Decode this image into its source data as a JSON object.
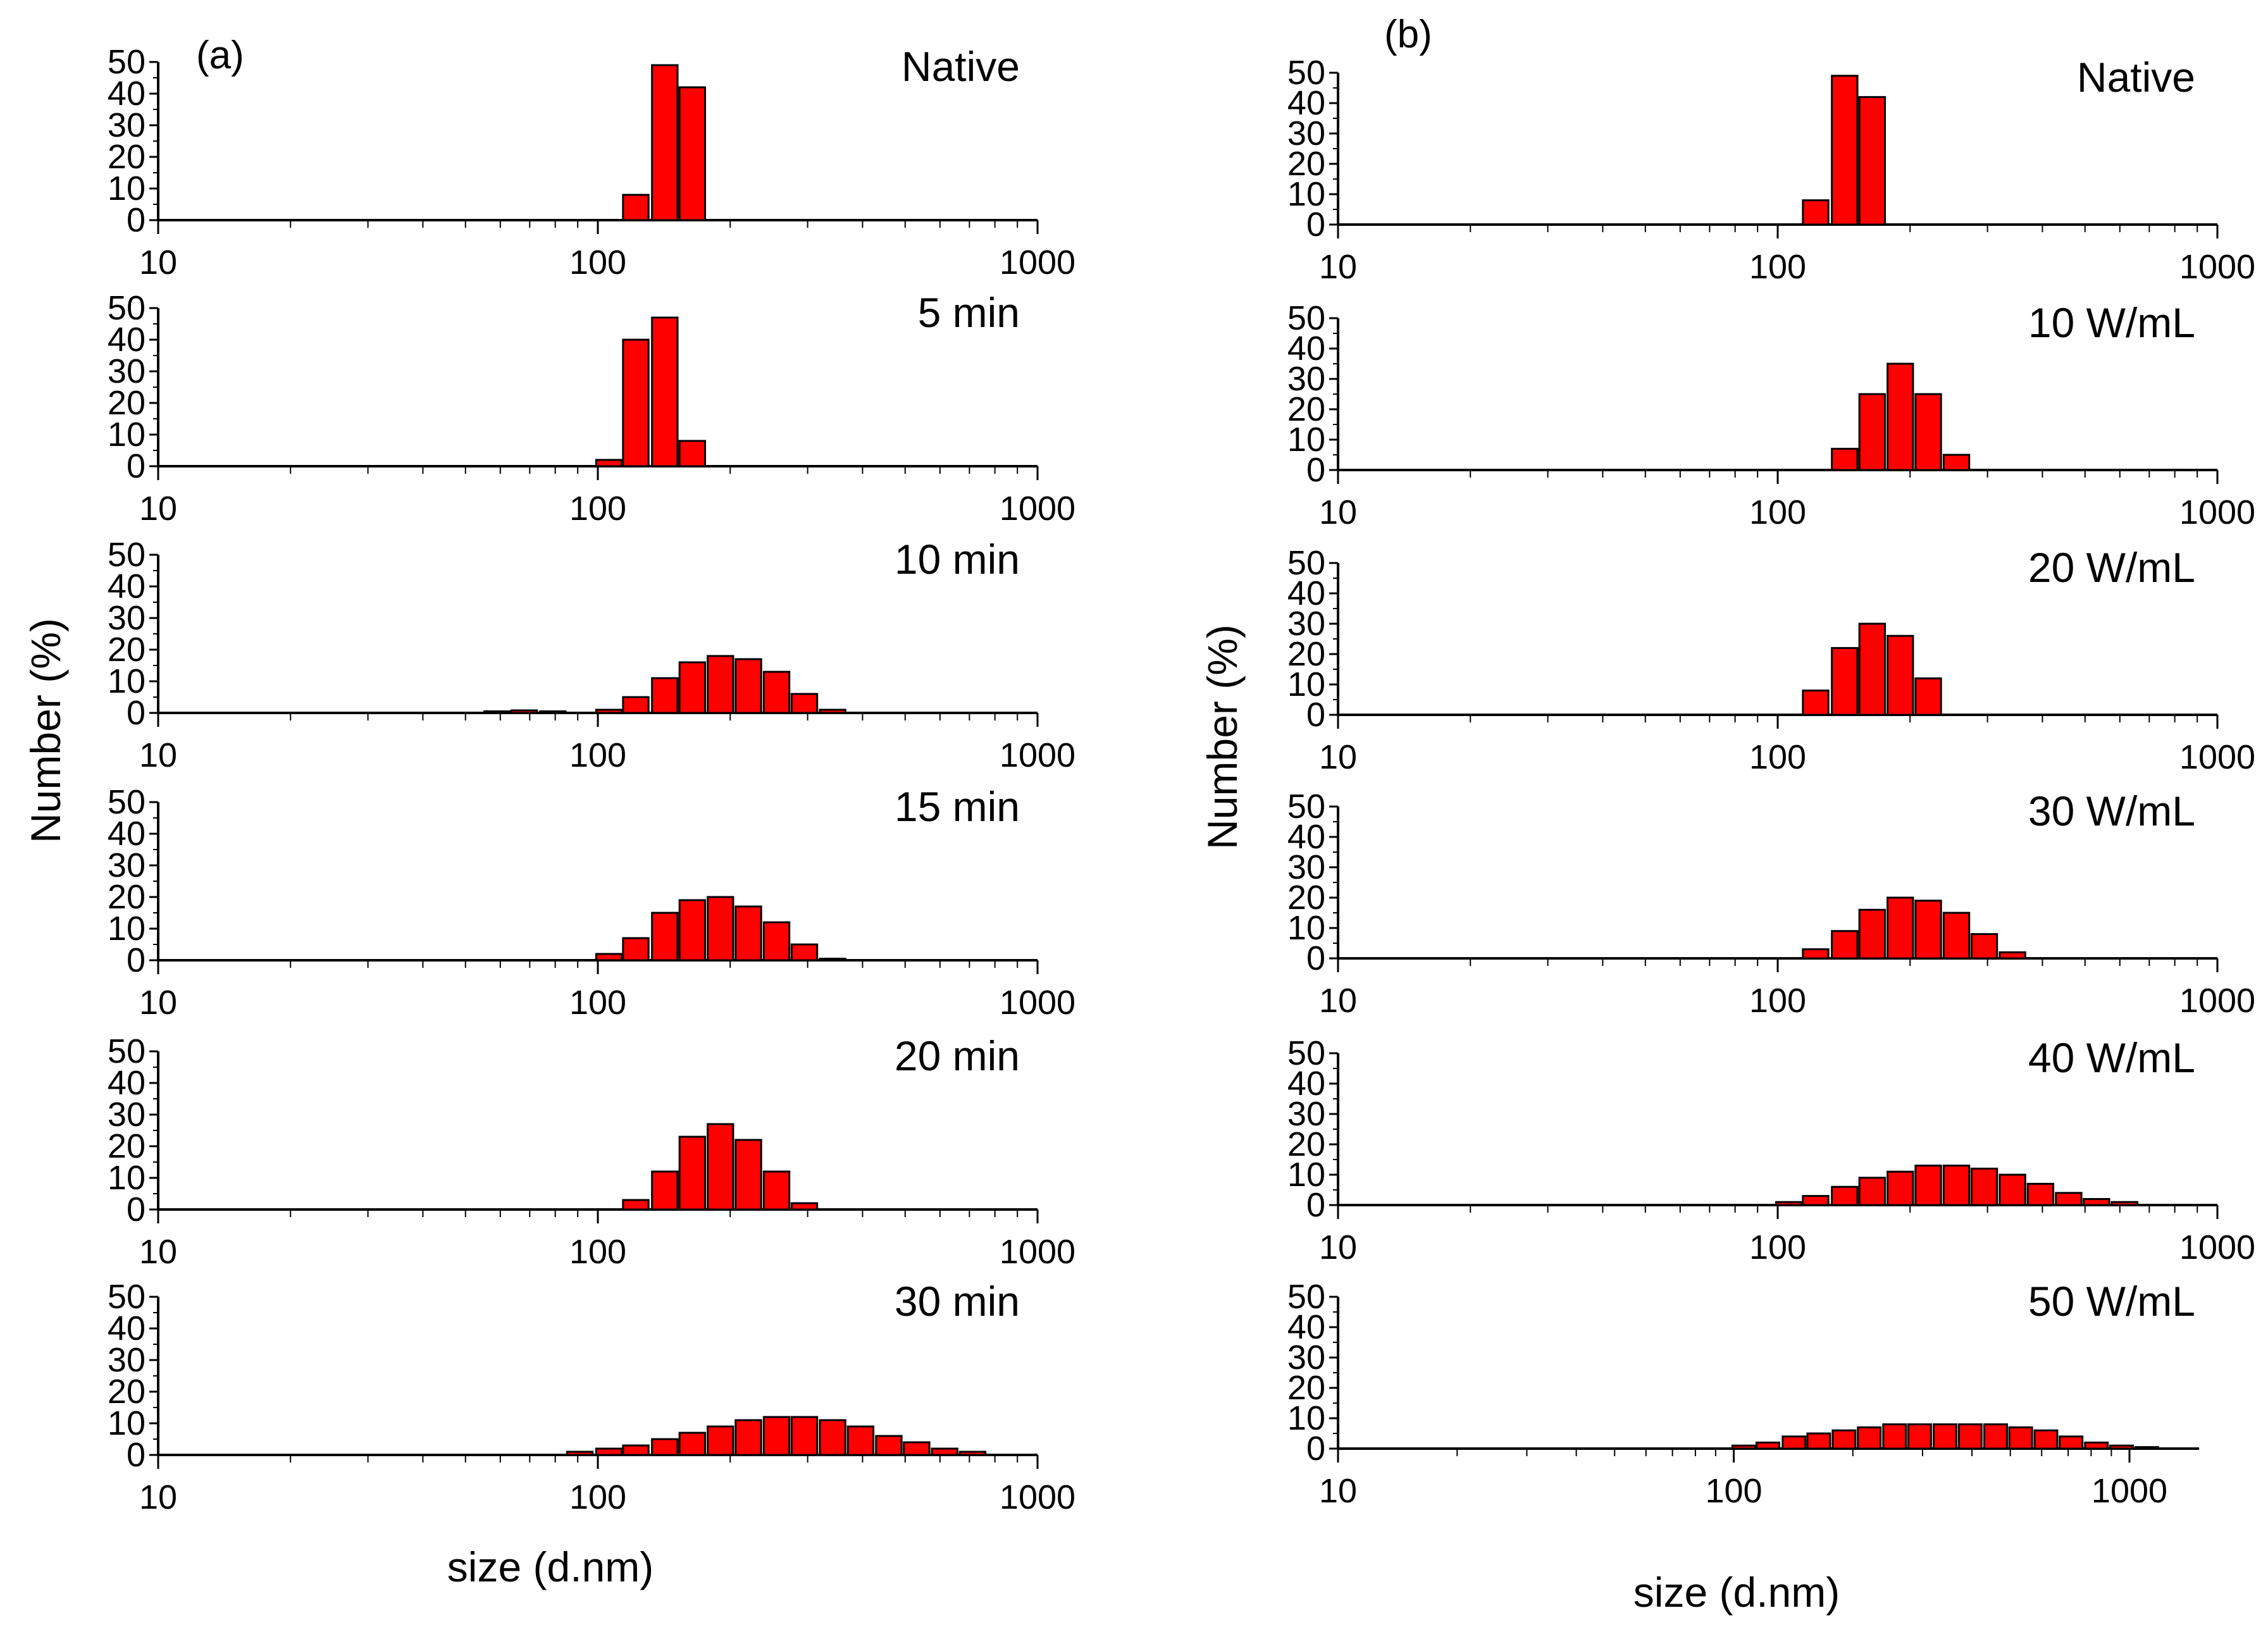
{
  "figure": {
    "panel_a_tag": "(a)",
    "panel_b_tag": "(b)",
    "ylabel": "Number (%)",
    "xlabel": "size (d.nm)",
    "bar_color": "#ff0000",
    "bar_edge_color": "#000000"
  },
  "chart_data": [
    {
      "type": "bar",
      "panel": "a",
      "title": "Native",
      "xscale": "log",
      "xlim": [
        10,
        1000
      ],
      "ylim": [
        0,
        50
      ],
      "yticks": [
        0,
        10,
        20,
        30,
        40,
        50
      ],
      "xticks": [
        10,
        100,
        1000
      ],
      "x": [
        122,
        142,
        164
      ],
      "values": [
        8,
        49,
        42
      ]
    },
    {
      "type": "bar",
      "panel": "a",
      "title": "5 min",
      "xscale": "log",
      "xlim": [
        10,
        1000
      ],
      "ylim": [
        0,
        50
      ],
      "yticks": [
        0,
        10,
        20,
        30,
        40,
        50
      ],
      "xticks": [
        10,
        100,
        1000
      ],
      "x": [
        106,
        122,
        142,
        164
      ],
      "values": [
        2,
        40,
        47,
        8
      ]
    },
    {
      "type": "bar",
      "panel": "a",
      "title": "10 min",
      "xscale": "log",
      "xlim": [
        10,
        1000
      ],
      "ylim": [
        0,
        50
      ],
      "yticks": [
        0,
        10,
        20,
        30,
        40,
        50
      ],
      "xticks": [
        10,
        100,
        1000
      ],
      "x": [
        59,
        68,
        79,
        106,
        122,
        142,
        164,
        190,
        220,
        255,
        295,
        342
      ],
      "values": [
        0.5,
        0.8,
        0.5,
        1,
        5,
        11,
        16,
        18,
        17,
        13,
        6,
        1
      ]
    },
    {
      "type": "bar",
      "panel": "a",
      "title": "15 min",
      "xscale": "log",
      "xlim": [
        10,
        1000
      ],
      "ylim": [
        0,
        50
      ],
      "yticks": [
        0,
        10,
        20,
        30,
        40,
        50
      ],
      "xticks": [
        10,
        100,
        1000
      ],
      "x": [
        106,
        122,
        142,
        164,
        190,
        220,
        255,
        295,
        342
      ],
      "values": [
        2,
        7,
        15,
        19,
        20,
        17,
        12,
        5,
        0.5
      ]
    },
    {
      "type": "bar",
      "panel": "a",
      "title": "20 min",
      "xscale": "log",
      "xlim": [
        10,
        1000
      ],
      "ylim": [
        0,
        50
      ],
      "yticks": [
        0,
        10,
        20,
        30,
        40,
        50
      ],
      "xticks": [
        10,
        100,
        1000
      ],
      "x": [
        122,
        142,
        164,
        190,
        220,
        255,
        295
      ],
      "values": [
        3,
        12,
        23,
        27,
        22,
        12,
        2
      ]
    },
    {
      "type": "bar",
      "panel": "a",
      "title": "30 min",
      "xscale": "log",
      "xlim": [
        10,
        1000
      ],
      "ylim": [
        0,
        50
      ],
      "yticks": [
        0,
        10,
        20,
        30,
        40,
        50
      ],
      "xticks": [
        10,
        100,
        1000
      ],
      "x": [
        91,
        106,
        122,
        142,
        164,
        190,
        220,
        255,
        295,
        342,
        396,
        459,
        531,
        615,
        712
      ],
      "values": [
        1,
        2,
        3,
        5,
        7,
        9,
        11,
        12,
        12,
        11,
        9,
        6,
        4,
        2,
        1
      ]
    },
    {
      "type": "bar",
      "panel": "b",
      "title": "Native",
      "xscale": "log",
      "xlim": [
        10,
        1000
      ],
      "ylim": [
        0,
        50
      ],
      "yticks": [
        0,
        10,
        20,
        30,
        40,
        50
      ],
      "xticks": [
        10,
        100,
        1000
      ],
      "x": [
        122,
        142,
        164
      ],
      "values": [
        8,
        49,
        42
      ]
    },
    {
      "type": "bar",
      "panel": "b",
      "title": "10 W/mL",
      "xscale": "log",
      "xlim": [
        10,
        1000
      ],
      "ylim": [
        0,
        50
      ],
      "yticks": [
        0,
        10,
        20,
        30,
        40,
        50
      ],
      "xticks": [
        10,
        100,
        1000
      ],
      "x": [
        142,
        164,
        190,
        220,
        255
      ],
      "values": [
        7,
        25,
        35,
        25,
        5
      ]
    },
    {
      "type": "bar",
      "panel": "b",
      "title": "20 W/mL",
      "xscale": "log",
      "xlim": [
        10,
        1000
      ],
      "ylim": [
        0,
        50
      ],
      "yticks": [
        0,
        10,
        20,
        30,
        40,
        50
      ],
      "xticks": [
        10,
        100,
        1000
      ],
      "x": [
        122,
        142,
        164,
        190,
        220
      ],
      "values": [
        8,
        22,
        30,
        26,
        12
      ]
    },
    {
      "type": "bar",
      "panel": "b",
      "title": "30 W/mL",
      "xscale": "log",
      "xlim": [
        10,
        1000
      ],
      "ylim": [
        0,
        50
      ],
      "yticks": [
        0,
        10,
        20,
        30,
        40,
        50
      ],
      "xticks": [
        10,
        100,
        1000
      ],
      "x": [
        122,
        142,
        164,
        190,
        220,
        255,
        295,
        342
      ],
      "values": [
        3,
        9,
        16,
        20,
        19,
        15,
        8,
        2
      ]
    },
    {
      "type": "bar",
      "panel": "b",
      "title": "40 W/mL",
      "xscale": "log",
      "xlim": [
        10,
        1000
      ],
      "ylim": [
        0,
        50
      ],
      "yticks": [
        0,
        10,
        20,
        30,
        40,
        50
      ],
      "xticks": [
        10,
        100,
        1000
      ],
      "x": [
        106,
        122,
        142,
        164,
        190,
        220,
        255,
        295,
        342,
        396,
        459,
        531,
        615
      ],
      "values": [
        1,
        3,
        6,
        9,
        11,
        13,
        13,
        12,
        10,
        7,
        4,
        2,
        1
      ]
    },
    {
      "type": "bar",
      "panel": "b",
      "title": "50 W/mL",
      "xscale": "log",
      "xlim": [
        10,
        1500
      ],
      "ylim": [
        0,
        50
      ],
      "yticks": [
        0,
        10,
        20,
        30,
        40,
        50
      ],
      "xticks": [
        10,
        100,
        1000
      ],
      "x": [
        106,
        122,
        142,
        164,
        190,
        220,
        255,
        295,
        342,
        396,
        459,
        531,
        615,
        712,
        825,
        955,
        1106
      ],
      "values": [
        1,
        2,
        4,
        5,
        6,
        7,
        8,
        8,
        8,
        8,
        8,
        7,
        6,
        4,
        2,
        1,
        0.5
      ]
    }
  ]
}
